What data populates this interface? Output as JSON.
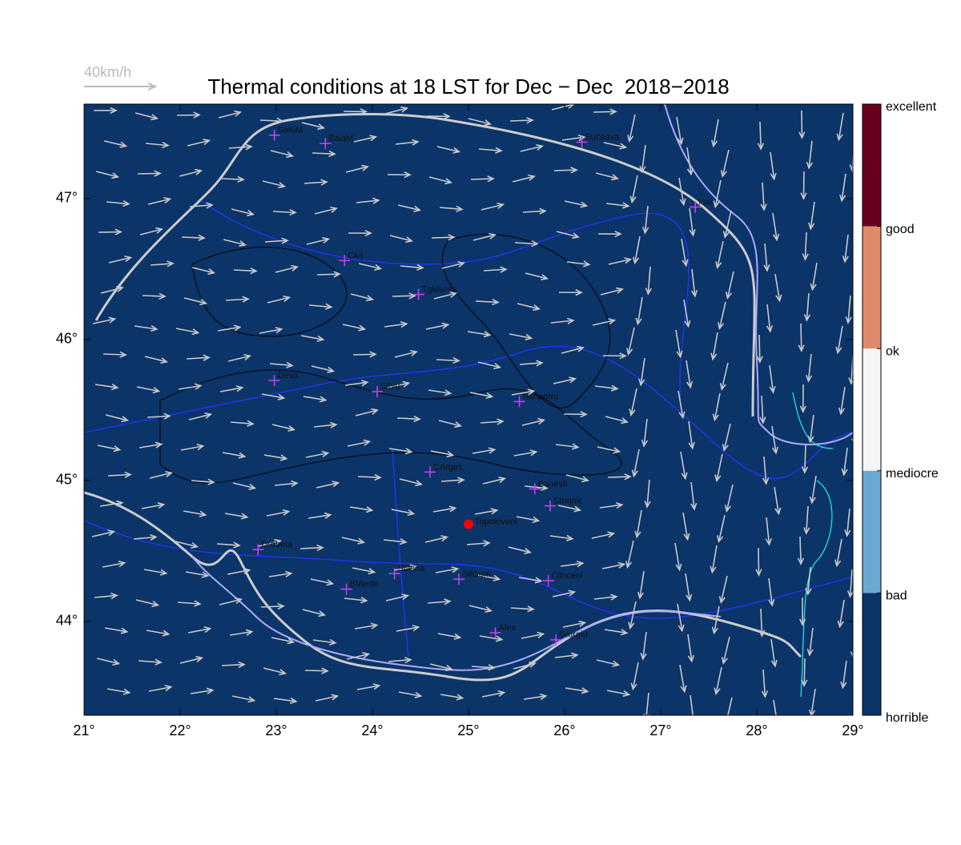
{
  "chart_data": {
    "type": "map",
    "title": "Thermal conditions at 18 LST for Dec − Dec  2018−2018",
    "wind_scale_label": "40km/h",
    "background_color": "#0b3468",
    "xlim": [
      21,
      29
    ],
    "ylim": [
      43.335,
      47.67
    ],
    "xticks": [
      {
        "value": 21,
        "label": "21°"
      },
      {
        "value": 22,
        "label": "22°"
      },
      {
        "value": 23,
        "label": "23°"
      },
      {
        "value": 24,
        "label": "24°"
      },
      {
        "value": 25,
        "label": "25°"
      },
      {
        "value": 26,
        "label": "26°"
      },
      {
        "value": 27,
        "label": "27°"
      },
      {
        "value": 28,
        "label": "28°"
      },
      {
        "value": 29,
        "label": "29°"
      }
    ],
    "yticks": [
      {
        "value": 44,
        "label": "44°"
      },
      {
        "value": 45,
        "label": "45°"
      },
      {
        "value": 46,
        "label": "46°"
      },
      {
        "value": 47,
        "label": "47°"
      }
    ],
    "cities": [
      {
        "name": "SatuM",
        "lon": 22.98,
        "lat": 47.45
      },
      {
        "name": "BaiaM",
        "lon": 23.51,
        "lat": 47.39
      },
      {
        "name": "Suceava",
        "lon": 26.18,
        "lat": 47.4
      },
      {
        "name": "Iasi",
        "lon": 27.36,
        "lat": 46.94
      },
      {
        "name": "Cluj",
        "lon": 23.71,
        "lat": 46.56
      },
      {
        "name": "TgMures",
        "lon": 24.48,
        "lat": 46.32
      },
      {
        "name": "Deva",
        "lon": 22.98,
        "lat": 45.71
      },
      {
        "name": "Sibiu",
        "lon": 24.05,
        "lat": 45.63
      },
      {
        "name": "Sanpetru",
        "lon": 25.53,
        "lat": 45.56
      },
      {
        "name": "CArges",
        "lon": 24.6,
        "lat": 45.06
      },
      {
        "name": "Banesti",
        "lon": 25.69,
        "lat": 44.94
      },
      {
        "name": "Strejnic",
        "lon": 25.85,
        "lat": 44.82
      },
      {
        "name": "Drobeta",
        "lon": 22.81,
        "lat": 44.51
      },
      {
        "name": "Slatina",
        "lon": 24.23,
        "lat": 44.34
      },
      {
        "name": "SilGum",
        "lon": 24.9,
        "lat": 44.3
      },
      {
        "name": "Clinceni",
        "lon": 25.83,
        "lat": 44.29
      },
      {
        "name": "BVerde",
        "lon": 23.73,
        "lat": 44.23
      },
      {
        "name": "Alex",
        "lon": 25.28,
        "lat": 43.92
      },
      {
        "name": "Giurgiu",
        "lon": 25.91,
        "lat": 43.87
      }
    ],
    "site": {
      "name": "Topoloveni",
      "lon": 25.0,
      "lat": 44.69,
      "color": "#ff0000"
    },
    "colorbar": {
      "labels": [
        "excellent",
        "good",
        "ok",
        "mediocre",
        "bad",
        "horrible"
      ],
      "colors": [
        "#67001f",
        "#e08a6b",
        "#f5f5f5",
        "#6aaad2",
        "#0b3468"
      ]
    }
  }
}
